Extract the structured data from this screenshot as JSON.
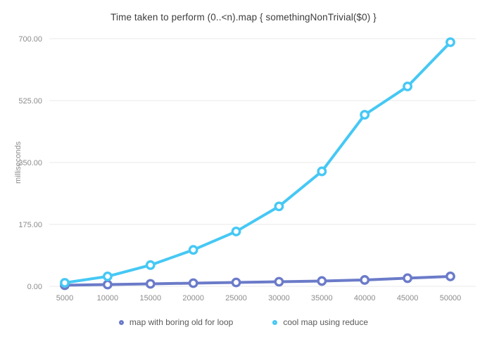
{
  "chart_data": {
    "type": "line",
    "title": "Time taken to perform (0..<n).map { somethingNonTrivial($0) }",
    "xlabel": "",
    "ylabel": "milliseconds",
    "x": [
      5000,
      10000,
      15000,
      20000,
      25000,
      30000,
      35000,
      40000,
      45000,
      50000
    ],
    "x_tick_labels": [
      "5000",
      "10000",
      "15000",
      "20000",
      "25000",
      "30000",
      "35000",
      "40000",
      "45000",
      "50000"
    ],
    "y_ticks": [
      0,
      175,
      350,
      525,
      700
    ],
    "y_tick_labels": [
      "0.00",
      "175.00",
      "350.00",
      "525.00",
      "700.00"
    ],
    "ylim": [
      0,
      700
    ],
    "grid": true,
    "legend_position": "bottom",
    "series": [
      {
        "name": "map with boring old for loop",
        "color": "#6b7bc9",
        "marker": "circle",
        "values": [
          3,
          5,
          7,
          9,
          11,
          13,
          15,
          18,
          23,
          28
        ]
      },
      {
        "name": "cool map using reduce",
        "color": "#46c8f4",
        "marker": "circle",
        "values": [
          10,
          28,
          60,
          103,
          155,
          226,
          325,
          485,
          565,
          690
        ]
      }
    ],
    "colors": {
      "gridline": "#e9e9e9",
      "tick_text": "#8c8c8c",
      "title_text": "#3d3d3d",
      "legend_text": "#5a5a5a",
      "background": "#ffffff"
    }
  }
}
